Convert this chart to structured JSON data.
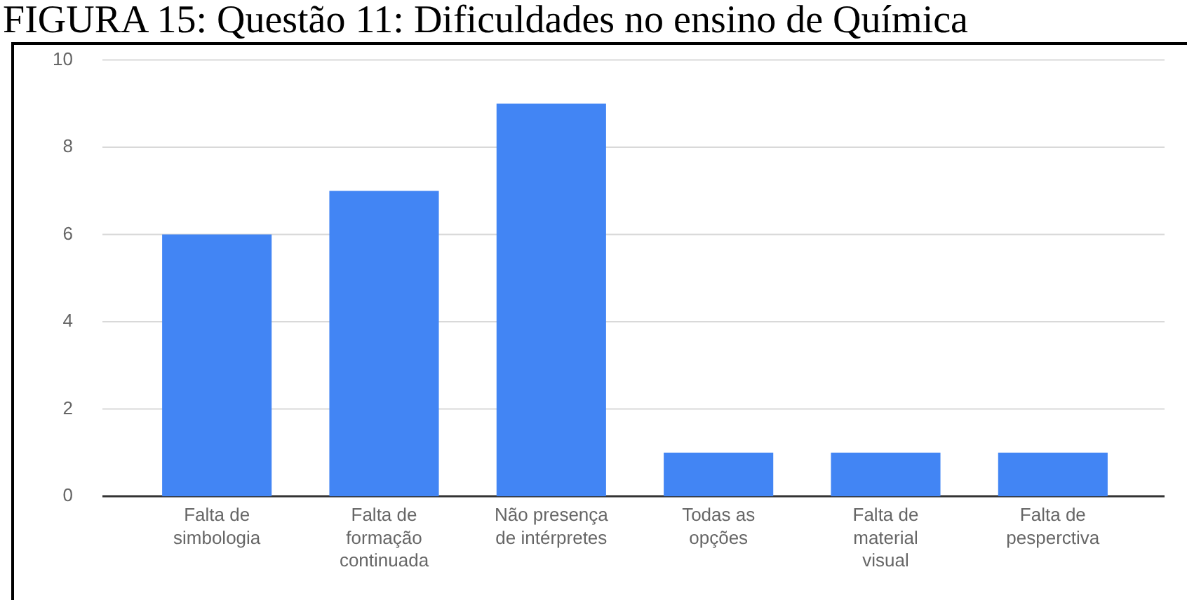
{
  "chart_data": {
    "type": "bar",
    "title": "FIGURA 15: Questão 11: Dificuldades no ensino de Química",
    "categories": [
      "Falta de simbologia",
      "Falta de formação continuada",
      "Não presença de intérpretes",
      "Todas as opções",
      "Falta de material visual",
      "Falta de pesperctiva"
    ],
    "values": [
      6,
      7,
      9,
      1,
      1,
      1
    ],
    "color": "#4285f4",
    "ylim": [
      0,
      10
    ],
    "yticks": [
      0,
      2,
      4,
      6,
      8,
      10
    ],
    "grid": "y",
    "legend": false
  }
}
